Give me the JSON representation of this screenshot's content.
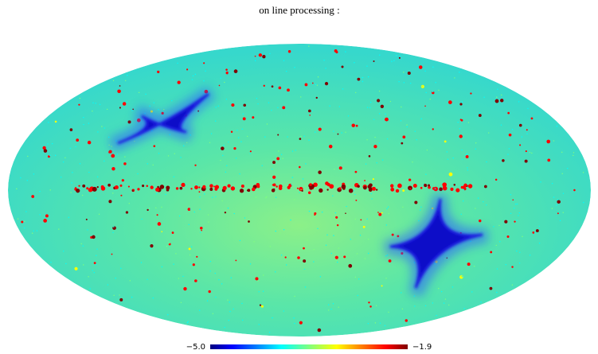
{
  "chart_data": {
    "type": "map",
    "title": "on line processing :",
    "projection": "mollweide",
    "colormap": "jet",
    "clim": [
      {
        "value": -5.0,
        "label": "−5.0"
      },
      {
        "value": -1.9,
        "label": "−1.9"
      }
    ]
  }
}
